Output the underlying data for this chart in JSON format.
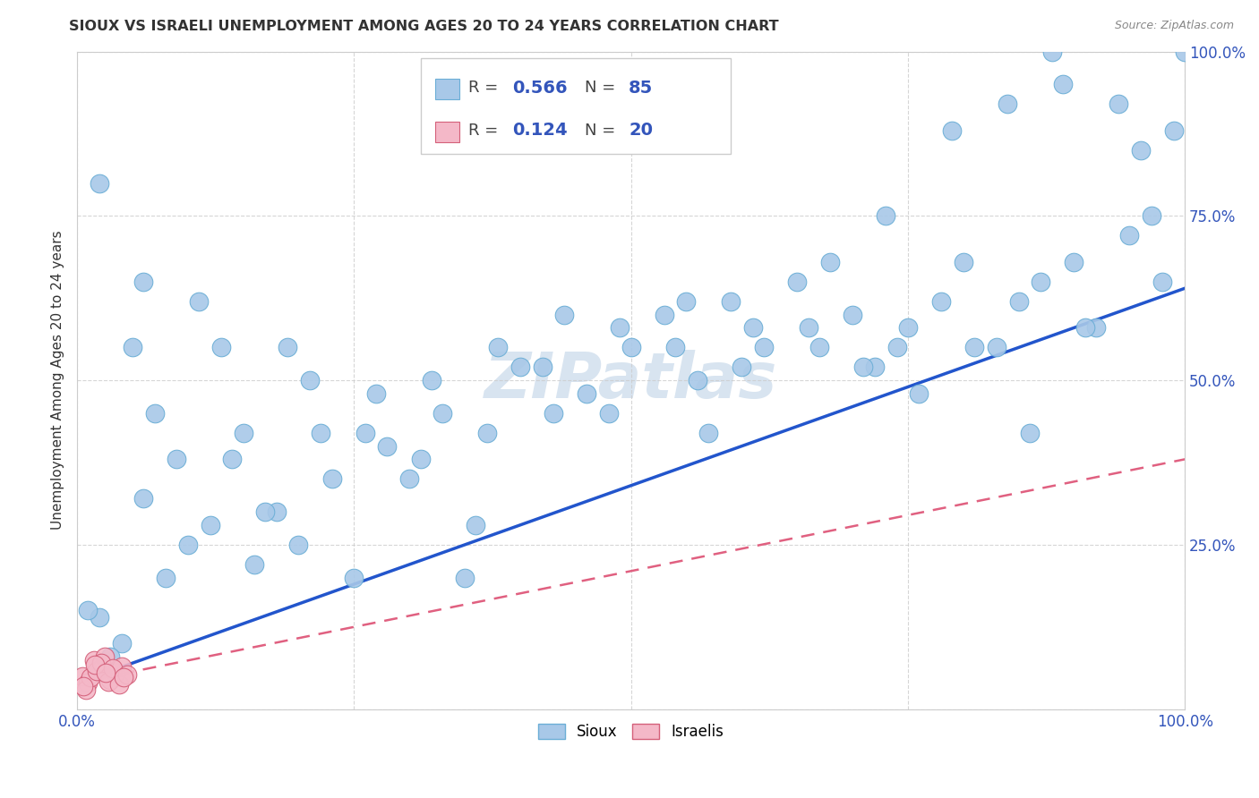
{
  "title": "SIOUX VS ISRAELI UNEMPLOYMENT AMONG AGES 20 TO 24 YEARS CORRELATION CHART",
  "source": "Source: ZipAtlas.com",
  "ylabel": "Unemployment Among Ages 20 to 24 years",
  "xlim": [
    0,
    1
  ],
  "ylim": [
    0,
    1
  ],
  "sioux_color": "#a8c8e8",
  "sioux_edge_color": "#6baed6",
  "israeli_color": "#f4b8c8",
  "israeli_edge_color": "#d4607a",
  "sioux_line_color": "#2255cc",
  "israeli_line_color": "#e06080",
  "watermark_color": "#d8e4f0",
  "sioux_x": [
    0.02,
    0.04,
    0.06,
    0.08,
    0.1,
    0.12,
    0.14,
    0.16,
    0.18,
    0.2,
    0.22,
    0.25,
    0.28,
    0.3,
    0.33,
    0.36,
    0.4,
    0.43,
    0.46,
    0.5,
    0.53,
    0.56,
    0.59,
    0.62,
    0.65,
    0.67,
    0.7,
    0.72,
    0.75,
    0.78,
    0.8,
    0.83,
    0.85,
    0.87,
    0.9,
    0.92,
    0.95,
    0.97,
    0.98,
    1.0,
    0.03,
    0.07,
    0.11,
    0.15,
    0.19,
    0.23,
    0.27,
    0.32,
    0.38,
    0.44,
    0.49,
    0.55,
    0.6,
    0.66,
    0.71,
    0.76,
    0.81,
    0.86,
    0.91,
    0.96,
    0.01,
    0.05,
    0.09,
    0.13,
    0.17,
    0.21,
    0.26,
    0.31,
    0.37,
    0.42,
    0.48,
    0.54,
    0.61,
    0.68,
    0.73,
    0.79,
    0.84,
    0.89,
    0.94,
    0.99,
    0.02,
    0.06,
    0.35,
    0.57,
    0.74,
    0.88
  ],
  "sioux_y": [
    0.14,
    0.1,
    0.32,
    0.2,
    0.25,
    0.28,
    0.38,
    0.22,
    0.3,
    0.25,
    0.42,
    0.2,
    0.4,
    0.35,
    0.45,
    0.28,
    0.52,
    0.45,
    0.48,
    0.55,
    0.6,
    0.5,
    0.62,
    0.55,
    0.65,
    0.55,
    0.6,
    0.52,
    0.58,
    0.62,
    0.68,
    0.55,
    0.62,
    0.65,
    0.68,
    0.58,
    0.72,
    0.75,
    0.65,
    1.0,
    0.08,
    0.45,
    0.62,
    0.42,
    0.55,
    0.35,
    0.48,
    0.5,
    0.55,
    0.6,
    0.58,
    0.62,
    0.52,
    0.58,
    0.52,
    0.48,
    0.55,
    0.42,
    0.58,
    0.85,
    0.15,
    0.55,
    0.38,
    0.55,
    0.3,
    0.5,
    0.42,
    0.38,
    0.42,
    0.52,
    0.45,
    0.55,
    0.58,
    0.68,
    0.75,
    0.88,
    0.92,
    0.95,
    0.92,
    0.88,
    0.8,
    0.65,
    0.2,
    0.42,
    0.55,
    1.0
  ],
  "israeli_x": [
    0.005,
    0.01,
    0.015,
    0.02,
    0.025,
    0.03,
    0.035,
    0.04,
    0.008,
    0.012,
    0.018,
    0.022,
    0.028,
    0.032,
    0.038,
    0.045,
    0.006,
    0.016,
    0.026,
    0.042
  ],
  "israeli_y": [
    0.05,
    0.04,
    0.075,
    0.06,
    0.08,
    0.045,
    0.055,
    0.065,
    0.03,
    0.048,
    0.058,
    0.07,
    0.042,
    0.062,
    0.038,
    0.052,
    0.035,
    0.068,
    0.055,
    0.048
  ],
  "sioux_line_x0": 0.0,
  "sioux_line_y0": 0.04,
  "sioux_line_x1": 1.0,
  "sioux_line_y1": 0.64,
  "israeli_line_x0": 0.0,
  "israeli_line_y0": 0.04,
  "israeli_line_x1": 1.0,
  "israeli_line_y1": 0.38
}
